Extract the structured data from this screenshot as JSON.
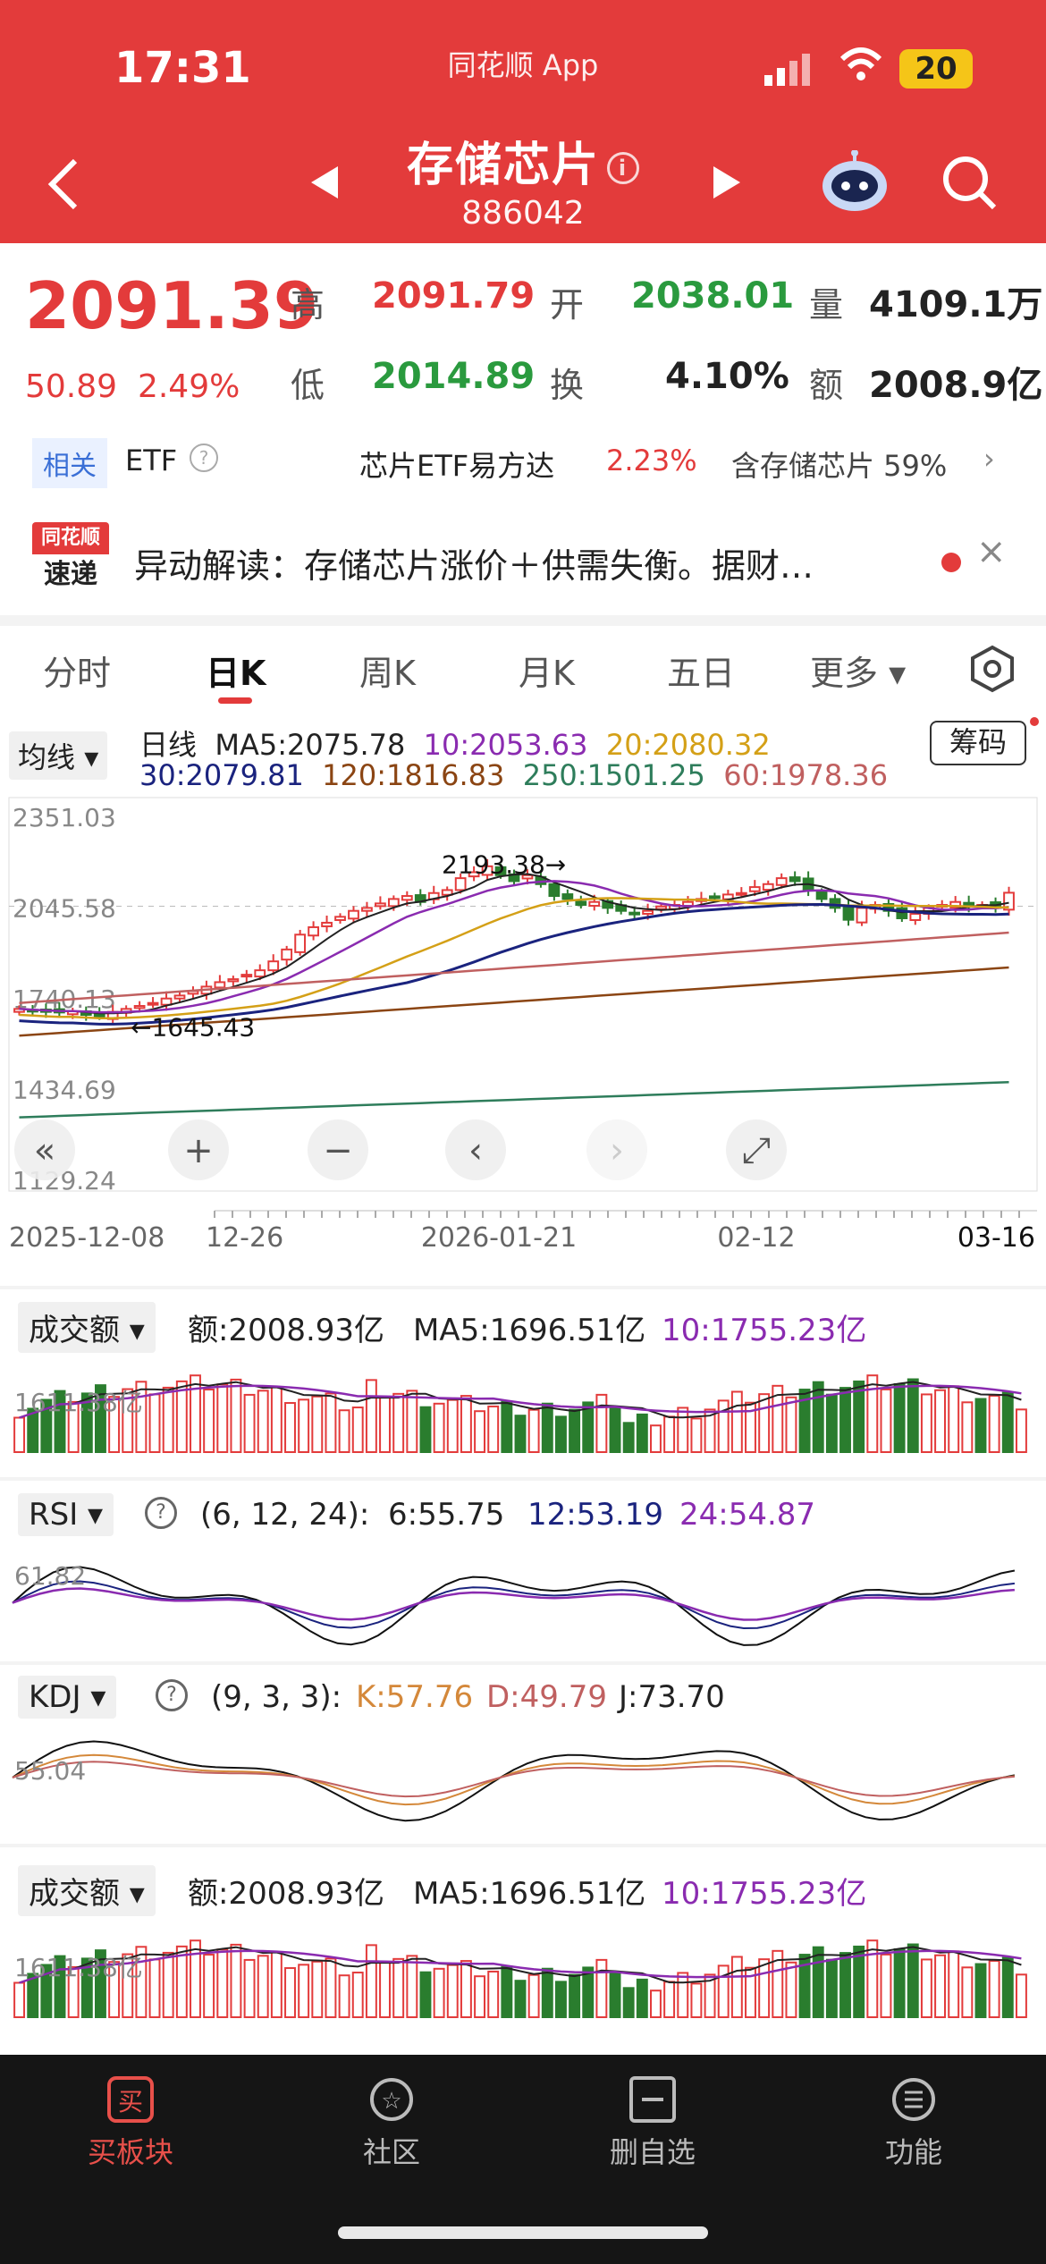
{
  "status_bar": {
    "time": "17:31",
    "app_name": "同花顺 App",
    "battery": "20"
  },
  "header": {
    "title": "存储芯片",
    "code": "886042"
  },
  "quote": {
    "price": "2091.39",
    "change": "50.89",
    "change_pct": "2.49%",
    "stats": [
      {
        "k": "高",
        "v": "2091.79",
        "color": "#e33b3b"
      },
      {
        "k": "开",
        "v": "2038.01",
        "color": "#2a9a3e"
      },
      {
        "k": "量",
        "v": "4109.1万",
        "color": "#222222"
      },
      {
        "k": "低",
        "v": "2014.89",
        "color": "#2a9a3e"
      },
      {
        "k": "换",
        "v": "4.10%",
        "color": "#222222"
      },
      {
        "k": "额",
        "v": "2008.9亿",
        "color": "#222222"
      }
    ]
  },
  "etf": {
    "tag": "相关",
    "label": "ETF",
    "name": "芯片ETF易方达",
    "pct": "2.23%",
    "holding": "含存储芯片 59%"
  },
  "news": {
    "logo_top": "同花顺",
    "logo_bottom": "速递",
    "text": "异动解读：存储芯片涨价＋供需失衡。据财…"
  },
  "tabs": [
    "分时",
    "日K",
    "周K",
    "月K",
    "五日",
    "更多"
  ],
  "kline": {
    "ma_toggle": "均线",
    "ma_line1": [
      {
        "t": "日线",
        "color": "#222222"
      },
      {
        "t": "MA5:2075.78",
        "color": "#222222"
      },
      {
        "t": "10:2053.63",
        "color": "#8a2bb0"
      },
      {
        "t": "20:2080.32",
        "color": "#d4a017"
      }
    ],
    "ma_line2": [
      {
        "t": "30:2079.81",
        "color": "#1a237e"
      },
      {
        "t": "120:1816.83",
        "color": "#8b4513"
      },
      {
        "t": "250:1501.25",
        "color": "#2e7d5b"
      },
      {
        "t": "60:1978.36",
        "color": "#c06060"
      }
    ],
    "chip_button": "筹码",
    "y_labels": [
      "2351.03",
      "2045.58",
      "1740.13",
      "1434.69",
      "1129.24"
    ],
    "high_label": "2193.38→",
    "low_label": "←1645.43",
    "x_labels": [
      "2025-12-08",
      "12-26",
      "2026-01-21",
      "02-12",
      "03-16"
    ],
    "chart_data": {
      "type": "candlestick",
      "ylim": [
        1129.24,
        2351.03
      ],
      "x_start": "2025-12-08",
      "x_end": "2026-03-16",
      "high": 2193.38,
      "low": 1645.43,
      "close": [
        1700,
        1695,
        1690,
        1688,
        1692,
        1680,
        1675,
        1690,
        1700,
        1710,
        1720,
        1735,
        1745,
        1760,
        1775,
        1790,
        1800,
        1815,
        1830,
        1860,
        1900,
        1950,
        1975,
        1990,
        2010,
        2030,
        2040,
        2055,
        2070,
        2080,
        2060,
        2090,
        2100,
        2140,
        2160,
        2180,
        2150,
        2130,
        2150,
        2120,
        2080,
        2070,
        2050,
        2060,
        2040,
        2030,
        2020,
        2030,
        2045,
        2050,
        2060,
        2070,
        2075,
        2085,
        2090,
        2110,
        2120,
        2140,
        2130,
        2100,
        2070,
        2040,
        2000,
        2040,
        2050,
        2030,
        2005,
        2020,
        2040,
        2050,
        2060,
        2045,
        2050,
        2040,
        2091
      ]
    },
    "controls": [
      "«",
      "+",
      "−",
      "‹",
      "›",
      "⤢"
    ]
  },
  "turnover": {
    "tag": "成交额",
    "amount": "额:2008.93亿",
    "ma5": "MA5:1696.51亿",
    "ma10": "10:1755.23亿",
    "label": "1611.38亿"
  },
  "rsi": {
    "tag": "RSI",
    "params": "(6, 12, 24):",
    "v6": "6:55.75",
    "v12": "12:53.19",
    "v24": "24:54.87",
    "label": "61.82"
  },
  "kdj": {
    "tag": "KDJ",
    "params": "(9, 3, 3):",
    "k": "K:57.76",
    "d": "D:49.79",
    "j": "J:73.70",
    "label": "55.04"
  },
  "turnover2": {
    "tag": "成交额",
    "amount": "额:2008.93亿",
    "ma5": "MA5:1696.51亿",
    "ma10": "10:1755.23亿",
    "label": "1611.38亿"
  },
  "bottom_nav": [
    {
      "label": "买板块",
      "icon": "buy-icon",
      "glyph": "买"
    },
    {
      "label": "社区",
      "icon": "community-icon",
      "glyph": "☆"
    },
    {
      "label": "删自选",
      "icon": "remove-watchlist-icon",
      "glyph": "—"
    },
    {
      "label": "功能",
      "icon": "menu-icon",
      "glyph": "≡"
    }
  ]
}
